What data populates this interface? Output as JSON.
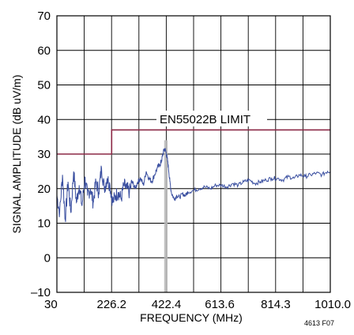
{
  "chart_data": {
    "type": "line",
    "title": "",
    "xlabel": "FREQUENCY (MHz)",
    "ylabel": "SIGNAL AMPLITUDE (dB uV/m)",
    "xlim": [
      30,
      1010
    ],
    "ylim": [
      -10,
      70
    ],
    "x_ticks": [
      30,
      226.2,
      422.4,
      613.6,
      814.3,
      1010.0
    ],
    "x_tick_labels": [
      "30",
      "226.2",
      "422.4",
      "613.6",
      "814.3",
      "1010.0"
    ],
    "y_ticks": [
      -10,
      0,
      10,
      20,
      30,
      40,
      50,
      60,
      70
    ],
    "y_tick_labels": [
      "–10",
      "0",
      "10",
      "20",
      "30",
      "40",
      "50",
      "60",
      "70"
    ],
    "grid": true,
    "annotation": "EN55022B LIMIT",
    "figure_id": "4613 F07",
    "series": [
      {
        "role": "limit",
        "color": "#8b2846",
        "x": [
          30,
          226.2,
          226.2,
          1010
        ],
        "y": [
          30,
          30,
          37,
          37
        ]
      },
      {
        "role": "measured",
        "color": "#3a4fa0",
        "x": [
          30,
          40,
          50,
          60,
          70,
          80,
          90,
          100,
          110,
          120,
          130,
          140,
          150,
          160,
          170,
          180,
          190,
          200,
          210,
          220,
          230,
          240,
          250,
          260,
          270,
          280,
          290,
          300,
          310,
          320,
          330,
          340,
          350,
          360,
          370,
          380,
          390,
          400,
          405,
          410,
          415,
          420,
          425,
          430,
          435,
          440,
          450,
          460,
          470,
          480,
          490,
          500,
          520,
          540,
          560,
          580,
          600,
          620,
          640,
          660,
          680,
          700,
          720,
          740,
          760,
          780,
          800,
          820,
          840,
          860,
          880,
          900,
          920,
          940,
          960,
          980,
          1000,
          1010
        ],
        "y": [
          18,
          13,
          24,
          11,
          22,
          13,
          25,
          16,
          21,
          15,
          23,
          18,
          20,
          16,
          22,
          19,
          26,
          20,
          23,
          21,
          16,
          18,
          19,
          17,
          21,
          20,
          19,
          22,
          20,
          22,
          23,
          21,
          25,
          23,
          22,
          24,
          26,
          27,
          28,
          30,
          31.5,
          31,
          29,
          26,
          22,
          19,
          17,
          18,
          17.5,
          18.5,
          18,
          19,
          19.5,
          20,
          20.5,
          20,
          21,
          21,
          20.5,
          21.5,
          21,
          22,
          22.5,
          21.5,
          22,
          22.5,
          23,
          23,
          22.5,
          23.5,
          23,
          24,
          23.5,
          24,
          24.5,
          24,
          25,
          25
        ]
      }
    ],
    "vertical_markers_x": [
      416,
      419,
      422.4,
      425
    ]
  }
}
